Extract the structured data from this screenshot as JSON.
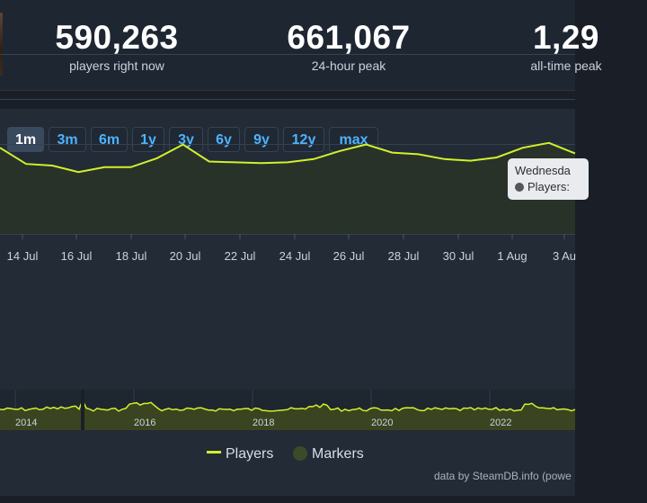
{
  "stats": [
    {
      "value": "590,263",
      "label": "players right now"
    },
    {
      "value": "661,067",
      "label": "24-hour peak"
    },
    {
      "value": "1,29",
      "label": "all-time peak"
    }
  ],
  "ranges": [
    {
      "label": "1m",
      "active": true
    },
    {
      "label": "3m",
      "active": false
    },
    {
      "label": "6m",
      "active": false
    },
    {
      "label": "1y",
      "active": false
    },
    {
      "label": "3y",
      "active": false
    },
    {
      "label": "6y",
      "active": false
    },
    {
      "label": "9y",
      "active": false
    },
    {
      "label": "12y",
      "active": false
    },
    {
      "label": "max",
      "active": false
    }
  ],
  "tooltip": {
    "title": "Wednesda",
    "series_label": "Players:"
  },
  "legend": {
    "players": "Players",
    "markers": "Markers"
  },
  "credit": "data by SteamDB.info (powe",
  "colors": {
    "line": "#d2f02b",
    "area": "#3a4420",
    "background": "#222b36"
  },
  "chart_data": [
    {
      "type": "line",
      "series": [
        {
          "name": "Players"
        }
      ],
      "x_labels": [
        "14 Jul",
        "16 Jul",
        "18 Jul",
        "20 Jul",
        "22 Jul",
        "24 Jul",
        "26 Jul",
        "28 Jul",
        "30 Jul",
        "1 Aug",
        "3 Au"
      ],
      "relative_values": [
        0.62,
        0.42,
        0.4,
        0.32,
        0.38,
        0.38,
        0.49,
        0.66,
        0.45,
        0.44,
        0.43,
        0.44,
        0.48,
        0.58,
        0.66,
        0.56,
        0.54,
        0.48,
        0.46,
        0.5,
        0.62,
        0.68,
        0.55
      ],
      "grid": true
    },
    {
      "type": "area",
      "series": [
        {
          "name": "Players"
        }
      ],
      "x_labels": [
        "2014",
        "2016",
        "2018",
        "2020",
        "2022"
      ]
    }
  ]
}
